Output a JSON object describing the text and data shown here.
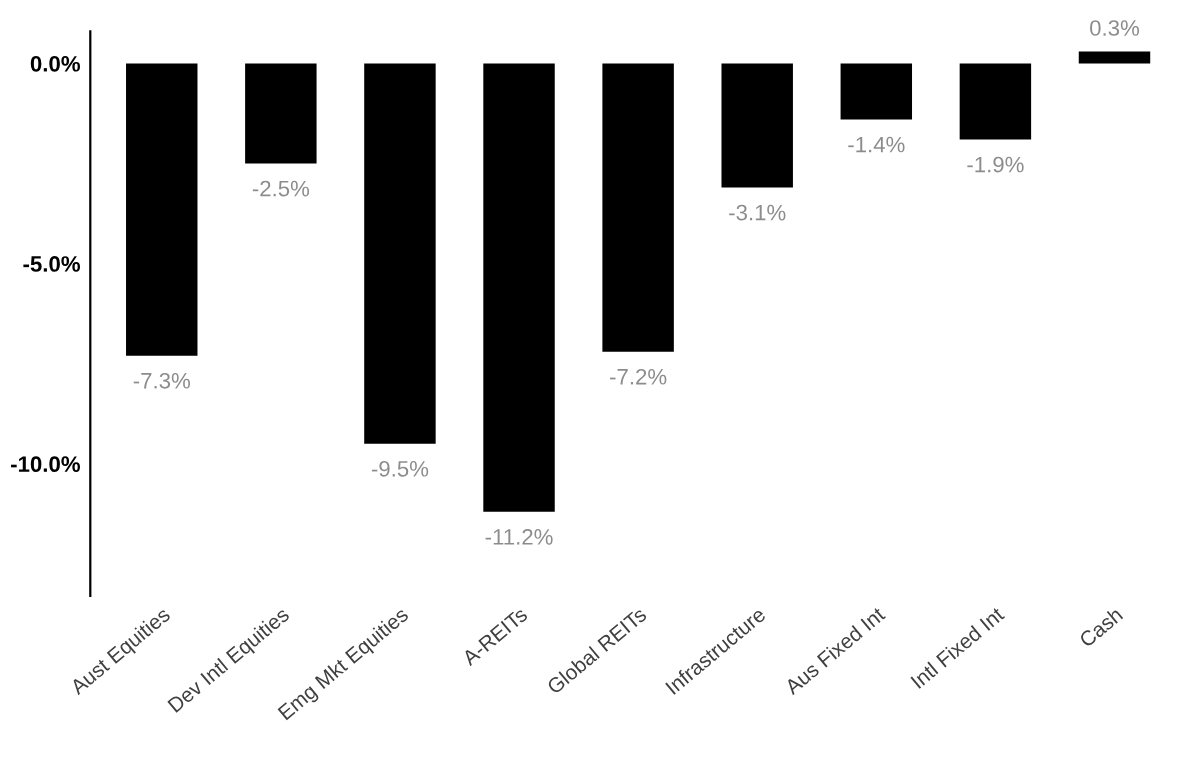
{
  "chart_data": {
    "type": "bar",
    "categories": [
      "Aust Equities",
      "Dev Intl Equities",
      "Emg Mkt Equities",
      "A-REITs",
      "Global REITs",
      "Infrastructure",
      "Aus Fixed Int",
      "Intl Fixed Int",
      "Cash"
    ],
    "values": [
      -7.3,
      -2.5,
      -9.5,
      -11.2,
      -7.2,
      -3.1,
      -1.4,
      -1.9,
      0.3
    ],
    "value_labels": [
      "-7.3%",
      "-2.5%",
      "-9.5%",
      "-11.2%",
      "-7.2%",
      "-3.1%",
      "-1.4%",
      "-1.9%",
      "0.3%"
    ],
    "color": "#000000",
    "ylim": [
      -13.3,
      0.8
    ],
    "yticks": [
      {
        "value": 0,
        "label": "0.0%"
      },
      {
        "value": -5,
        "label": "-5.0%"
      },
      {
        "value": -10,
        "label": "-10.0%"
      }
    ],
    "grid": false,
    "legend": false
  }
}
